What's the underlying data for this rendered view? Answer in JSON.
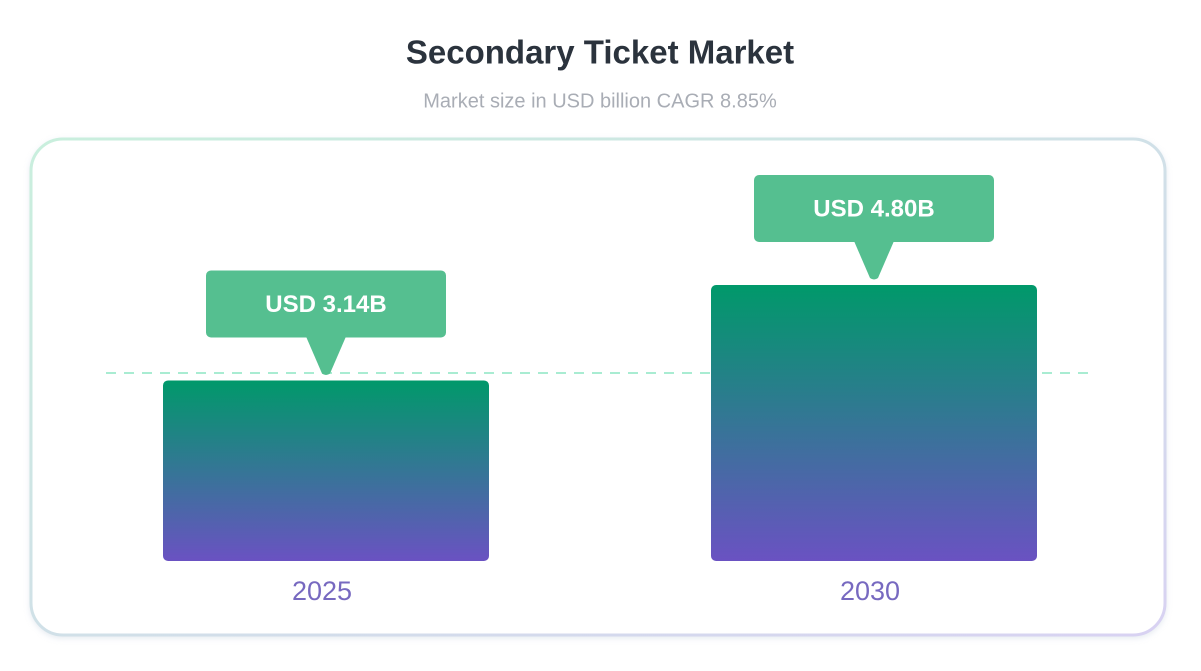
{
  "chart_data": {
    "type": "bar",
    "title": "Secondary Ticket Market",
    "subtitle": "Market size in USD billion CAGR 8.85%",
    "categories": [
      "2025",
      "2030"
    ],
    "values": [
      3.14,
      4.8
    ],
    "value_labels": [
      "USD 3.14B",
      "USD 4.80B"
    ],
    "colors": [
      "#00996a",
      "#6a52c2"
    ],
    "label_color": "#55bf90"
  }
}
